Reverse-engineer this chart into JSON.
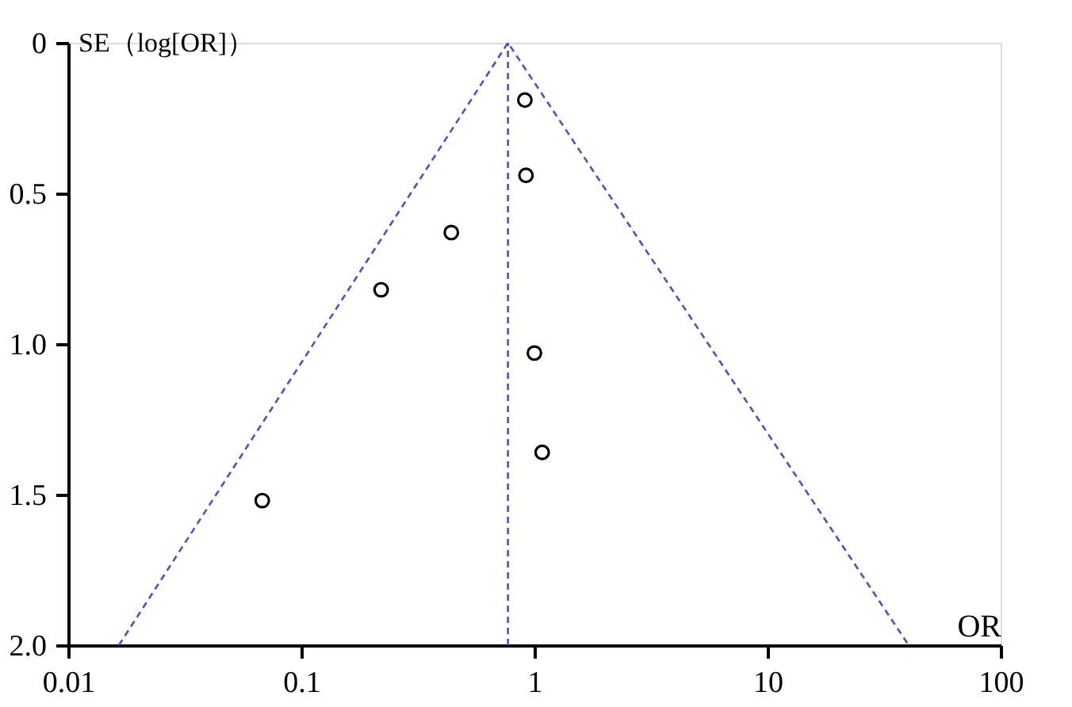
{
  "chart_data": {
    "type": "scatter",
    "xlabel": "OR",
    "ylabel": "SE（log[OR]）",
    "log": "x",
    "xlim": [
      0.01,
      100
    ],
    "xticks": [
      0.01,
      0.1,
      1,
      10,
      100
    ],
    "ylim": [
      2.0,
      0
    ],
    "yticks": [
      0,
      0.5,
      {
        "value": 1,
        "label": "1.0"
      },
      1.5,
      {
        "value": 2,
        "label": "2.0"
      }
    ],
    "grid": false,
    "marker": "circle",
    "series": [
      {
        "color": "#000000",
        "x": [
          0.91,
          0.92,
          0.44,
          0.22,
          1.0,
          1.08,
          0.068
        ],
        "values": [
          0.19,
          0.44,
          0.63,
          0.82,
          1.03,
          1.36,
          1.52
        ]
      },
      {
        "type": "line",
        "color": "#5050c0",
        "line_style": "dashed",
        "marker": "none",
        "x": [
          0.0165,
          0.77,
          40.3
        ],
        "values": [
          2.0,
          0,
          2.0
        ]
      }
    ],
    "ref_lines": [
      {
        "axis": "x",
        "value": 0.77,
        "color": "#5050c0",
        "line_style": "dashed"
      }
    ]
  }
}
